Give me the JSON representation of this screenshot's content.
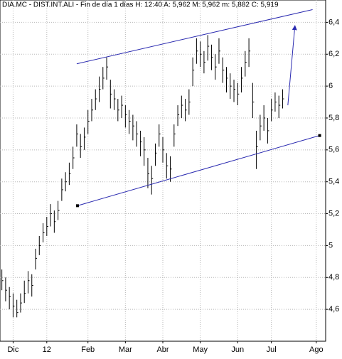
{
  "chart_data": {
    "type": "ohlc",
    "title": "DIA.MC - DIST.INT.ALI - Fin de día 1 días H: 12:40 A: 5,962 M: 5,962 m: 5,882 C: 5,919",
    "color": "#000000",
    "high": [
      4.85,
      4.8,
      4.74,
      4.7,
      4.66,
      4.7,
      4.78,
      4.84,
      4.82,
      4.98,
      5.06,
      5.14,
      5.18,
      5.26,
      5.22,
      5.28,
      5.42,
      5.46,
      5.52,
      5.62,
      5.76,
      5.7,
      5.74,
      5.85,
      5.92,
      5.98,
      6.06,
      6.12,
      6.18,
      6.04,
      5.98,
      5.92,
      5.94,
      5.88,
      5.85,
      5.82,
      5.78,
      5.72,
      5.68,
      5.55,
      5.5,
      5.64,
      5.76,
      5.68,
      5.58,
      5.56,
      5.76,
      5.88,
      5.94,
      5.92,
      5.98,
      6.18,
      6.3,
      6.28,
      6.22,
      6.32,
      6.26,
      6.2,
      6.3,
      6.18,
      6.12,
      6.08,
      6.04,
      6.02,
      6.12,
      6.22,
      6.3,
      6.02,
      5.72,
      5.82,
      5.88,
      5.8,
      5.92,
      5.96,
      5.94,
      5.98
    ],
    "low": [
      4.72,
      4.65,
      4.6,
      4.55,
      4.55,
      4.58,
      4.64,
      4.7,
      4.68,
      4.85,
      4.94,
      5.02,
      5.06,
      5.12,
      5.08,
      5.16,
      5.28,
      5.34,
      5.38,
      5.48,
      5.62,
      5.55,
      5.6,
      5.7,
      5.78,
      5.85,
      5.9,
      5.98,
      6.04,
      5.86,
      5.85,
      5.78,
      5.8,
      5.74,
      5.7,
      5.66,
      5.62,
      5.56,
      5.5,
      5.36,
      5.32,
      5.5,
      5.62,
      5.52,
      5.42,
      5.4,
      5.62,
      5.75,
      5.8,
      5.78,
      5.82,
      6.0,
      6.14,
      6.12,
      6.08,
      6.16,
      6.1,
      6.04,
      6.14,
      6.02,
      5.96,
      5.92,
      5.9,
      5.88,
      5.96,
      6.06,
      6.12,
      5.8,
      5.48,
      5.66,
      5.72,
      5.64,
      5.78,
      5.84,
      5.8,
      5.86
    ],
    "close": [
      4.78,
      4.72,
      4.68,
      4.62,
      4.58,
      4.64,
      4.7,
      4.78,
      4.75,
      4.92,
      5.0,
      5.08,
      5.12,
      5.2,
      5.15,
      5.22,
      5.35,
      5.4,
      5.45,
      5.55,
      5.7,
      5.62,
      5.68,
      5.78,
      5.85,
      5.92,
      5.98,
      6.05,
      6.12,
      5.95,
      5.92,
      5.85,
      5.88,
      5.82,
      5.78,
      5.75,
      5.7,
      5.65,
      5.6,
      5.45,
      5.42,
      5.58,
      5.7,
      5.6,
      5.5,
      5.48,
      5.7,
      5.82,
      5.88,
      5.85,
      5.9,
      6.1,
      6.22,
      6.2,
      6.15,
      6.25,
      6.18,
      6.12,
      6.22,
      6.1,
      6.05,
      6.0,
      5.98,
      5.95,
      6.05,
      6.15,
      6.22,
      5.9,
      5.62,
      5.75,
      5.8,
      5.72,
      5.85,
      5.9,
      5.88,
      5.92
    ],
    "xlim": [
      -0.5,
      86.5
    ],
    "xticks": [
      {
        "value": 3,
        "label": "Dic"
      },
      12,
      {
        "value": 23,
        "label": "Feb"
      },
      {
        "value": 33,
        "label": "Mar"
      },
      {
        "value": 43,
        "label": "Abr"
      },
      {
        "value": 53,
        "label": "May"
      },
      {
        "value": 63,
        "label": "Jun"
      },
      {
        "value": 72,
        "label": "Jul"
      },
      {
        "value": 84,
        "label": "Ago"
      }
    ],
    "ylim": [
      4.4,
      6.54
    ],
    "yticks": [
      {
        "value": 4.6,
        "label": "4,6"
      },
      {
        "value": 4.8,
        "label": "4,8"
      },
      5,
      {
        "value": 5.2,
        "label": "5,2"
      },
      {
        "value": 5.4,
        "label": "5,4"
      },
      {
        "value": 5.6,
        "label": "5,6"
      },
      {
        "value": 5.8,
        "label": "5,8"
      },
      6,
      {
        "value": 6.2,
        "label": "6,2"
      },
      {
        "value": 6.4,
        "label": "6,4"
      }
    ],
    "grid": true,
    "trendlines": [
      {
        "color": "#2a2ab0",
        "points": [
          [
            20,
            6.14
          ],
          [
            83,
            6.48
          ]
        ]
      },
      {
        "color": "#2a2ab0",
        "points": [
          [
            20.2,
            5.25
          ],
          [
            84.9,
            5.69
          ]
        ],
        "end_markers": true
      },
      {
        "color": "#2a2ab0",
        "points": [
          [
            76.4,
            5.88
          ],
          [
            78.3,
            6.38
          ]
        ],
        "arrow": true
      }
    ]
  }
}
